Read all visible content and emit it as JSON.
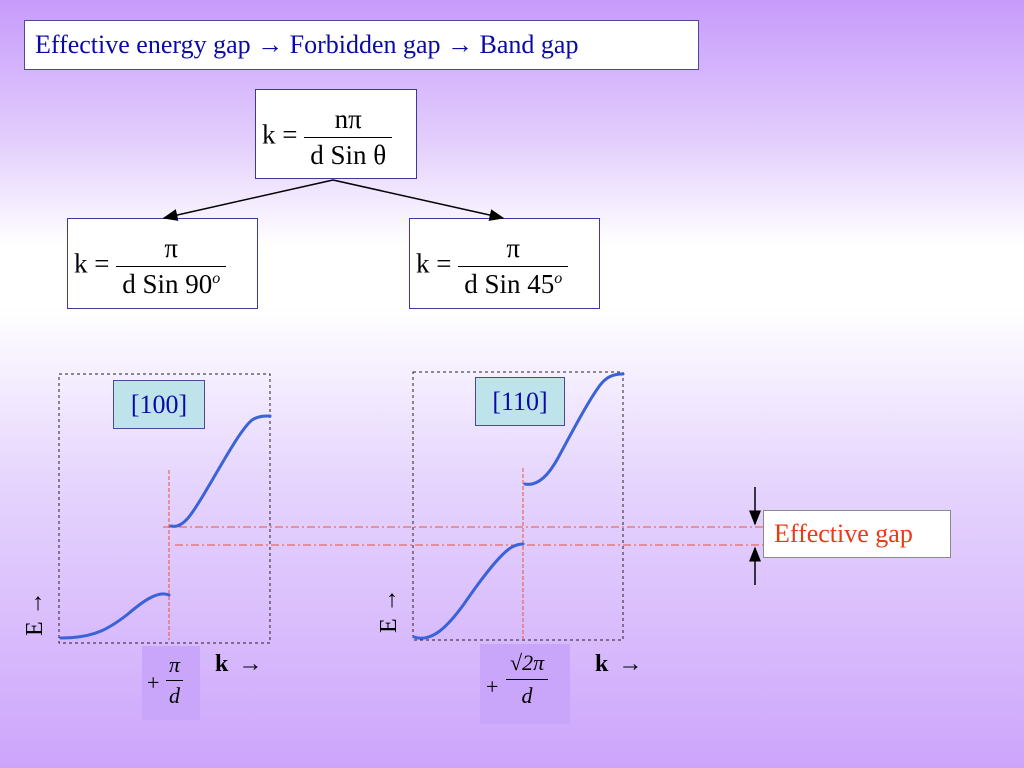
{
  "title": "Effective energy gap → Forbidden gap → Band gap",
  "formula_top": {
    "lhs": "k =",
    "num": "nπ",
    "den": "d Sin θ"
  },
  "formula_left": {
    "lhs": "k =",
    "num": "π",
    "den": "d Sin 90",
    "sup": "o"
  },
  "formula_right": {
    "lhs": "k =",
    "num": "π",
    "den": "d Sin 45",
    "sup": "o"
  },
  "panel_left": {
    "direction": "[100]",
    "k_value_sign": "+",
    "k_value_num": "π",
    "k_value_den": "d"
  },
  "panel_right": {
    "direction": "[110]",
    "k_value_sign": "+",
    "k_value_num": "√2π",
    "k_value_den": "d"
  },
  "axis": {
    "k": "k",
    "k_arrow": "→",
    "e": "E →"
  },
  "effective_gap_label": "Effective gap",
  "colors": {
    "curve": "#3a63d8",
    "guide": "#e8523a",
    "title_text": "#0a0aa8",
    "gap_text": "#e83a14",
    "label_bg": "#bfe3ea"
  }
}
